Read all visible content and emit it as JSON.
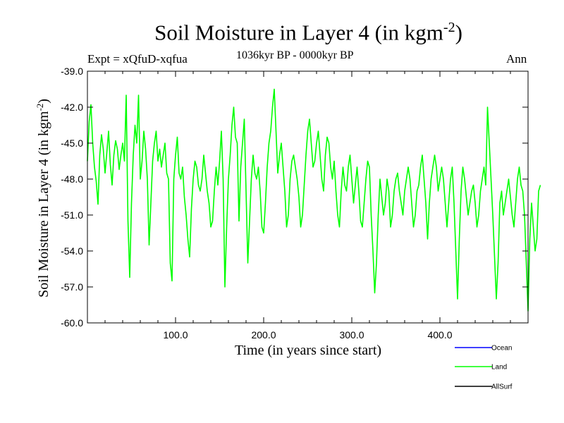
{
  "chart_data": {
    "type": "line",
    "title": "Soil Moisture in Layer 4 (in kgm",
    "title_sup": "-2",
    "title_close": ")",
    "subtitle_left": "Expt = xQfuD-xqfua",
    "subtitle_center": "1036kyr BP - 0000kyr BP",
    "subtitle_right": "Ann",
    "xlabel": "Time (in years since start)",
    "ylabel": "Soil Moisture in Layer 4 (in kgm",
    "ylabel_sup": "-2",
    "ylabel_close": ")",
    "xlim": [
      0,
      500
    ],
    "ylim": [
      -60,
      -39
    ],
    "xticks": [
      100,
      200,
      300,
      400
    ],
    "xtick_labels": [
      "100.0",
      "200.0",
      "300.0",
      "400.0"
    ],
    "yticks": [
      -39,
      -42,
      -45,
      -48,
      -51,
      -54,
      -57,
      -60
    ],
    "ytick_labels": [
      "-39.0",
      "-42.0",
      "-45.0",
      "-48.0",
      "-51.0",
      "-54.0",
      "-57.0",
      "-60.0"
    ],
    "legend": [
      {
        "name": "Ocean",
        "color": "#0000ff"
      },
      {
        "name": "Land",
        "color": "#00ff00"
      },
      {
        "name": "AllSurf",
        "color": "#000000"
      }
    ],
    "series": [
      {
        "name": "Land",
        "color": "#00ff00",
        "x_start": 0,
        "x_step": 2,
        "values": [
          -46.5,
          -43.2,
          -41.8,
          -45.0,
          -47.0,
          -48.2,
          -50.1,
          -46.0,
          -44.3,
          -45.5,
          -47.5,
          -45.8,
          -44.0,
          -46.8,
          -48.5,
          -46.0,
          -44.8,
          -45.5,
          -47.2,
          -46.0,
          -45.0,
          -46.5,
          -41.0,
          -51.5,
          -56.2,
          -50.0,
          -46.0,
          -43.5,
          -45.0,
          -41.0,
          -48.0,
          -46.5,
          -44.0,
          -45.5,
          -48.0,
          -53.5,
          -50.0,
          -46.5,
          -45.0,
          -44.0,
          -46.5,
          -45.5,
          -47.0,
          -46.0,
          -45.0,
          -47.5,
          -48.0,
          -55.0,
          -56.5,
          -48.0,
          -46.0,
          -44.5,
          -47.5,
          -48.0,
          -47.0,
          -49.5,
          -51.0,
          -53.0,
          -54.5,
          -50.5,
          -48.0,
          -46.5,
          -47.0,
          -48.5,
          -49.0,
          -48.0,
          -46.0,
          -47.5,
          -49.0,
          -50.0,
          -52.0,
          -51.5,
          -49.0,
          -47.0,
          -48.5,
          -46.5,
          -44.0,
          -48.0,
          -57.0,
          -52.0,
          -48.0,
          -46.0,
          -43.5,
          -42.0,
          -44.5,
          -45.0,
          -51.5,
          -47.0,
          -45.0,
          -43.0,
          -49.0,
          -55.0,
          -51.5,
          -48.0,
          -46.0,
          -47.5,
          -48.0,
          -47.0,
          -49.0,
          -52.0,
          -52.5,
          -50.0,
          -47.0,
          -45.0,
          -44.0,
          -42.0,
          -40.5,
          -44.0,
          -47.5,
          -46.0,
          -45.0,
          -47.0,
          -49.0,
          -52.0,
          -51.0,
          -48.0,
          -46.5,
          -46.0,
          -47.0,
          -48.0,
          -49.5,
          -52.0,
          -51.0,
          -48.5,
          -46.0,
          -44.0,
          -43.0,
          -45.0,
          -47.0,
          -46.5,
          -45.0,
          -44.0,
          -46.0,
          -48.0,
          -49.0,
          -46.0,
          -44.5,
          -45.0,
          -47.0,
          -48.0,
          -46.5,
          -49.0,
          -51.0,
          -52.0,
          -49.0,
          -47.0,
          -48.5,
          -49.0,
          -47.0,
          -46.0,
          -48.0,
          -50.0,
          -48.5,
          -47.0,
          -49.0,
          -51.5,
          -52.0,
          -50.0,
          -48.0,
          -46.5,
          -47.0,
          -51.0,
          -54.0,
          -57.5,
          -55.0,
          -51.0,
          -48.0,
          -49.5,
          -51.0,
          -50.0,
          -48.0,
          -49.0,
          -52.0,
          -51.0,
          -49.0,
          -48.0,
          -47.5,
          -49.0,
          -50.0,
          -51.0,
          -49.0,
          -48.0,
          -47.0,
          -48.0,
          -50.0,
          -52.0,
          -51.0,
          -49.0,
          -48.5,
          -47.0,
          -46.0,
          -48.0,
          -50.0,
          -53.0,
          -50.0,
          -48.0,
          -47.0,
          -46.0,
          -47.0,
          -49.0,
          -48.0,
          -47.0,
          -48.0,
          -50.0,
          -52.0,
          -50.0,
          -48.0,
          -47.0,
          -50.0,
          -54.0,
          -58.0,
          -53.0,
          -49.0,
          -47.0,
          -48.0,
          -49.5,
          -51.0,
          -50.0,
          -49.0,
          -48.5,
          -50.0,
          -52.0,
          -51.0,
          -49.0,
          -48.0,
          -47.0,
          -48.5,
          -42.0,
          -45.0,
          -48.0,
          -51.0,
          -54.5,
          -58.0,
          -55.0,
          -50.0,
          -49.0,
          -51.0,
          -50.0,
          -49.0,
          -48.0,
          -49.5,
          -51.0,
          -52.0,
          -50.0,
          -48.0,
          -47.0,
          -48.5,
          -49.0,
          -51.0,
          -55.0,
          -59.0,
          -53.0,
          -50.0,
          -52.0,
          -54.0,
          -53.0,
          -49.0,
          -48.5
        ]
      }
    ]
  }
}
